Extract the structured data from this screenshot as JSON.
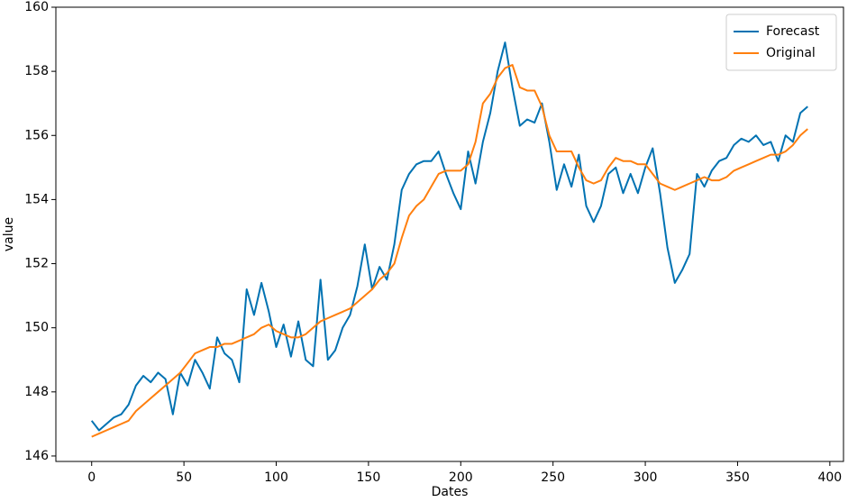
{
  "chart_data": {
    "type": "line",
    "x_label": "Dates",
    "y_label": "value",
    "x": [
      0,
      4,
      8,
      12,
      16,
      20,
      24,
      28,
      32,
      36,
      40,
      44,
      48,
      52,
      56,
      60,
      64,
      68,
      72,
      76,
      80,
      84,
      88,
      92,
      96,
      100,
      104,
      108,
      112,
      116,
      120,
      124,
      128,
      132,
      136,
      140,
      144,
      148,
      152,
      156,
      160,
      164,
      168,
      172,
      176,
      180,
      184,
      188,
      192,
      196,
      200,
      204,
      208,
      212,
      216,
      220,
      224,
      228,
      232,
      236,
      240,
      244,
      248,
      252,
      256,
      260,
      264,
      268,
      272,
      276,
      280,
      284,
      288,
      292,
      296,
      300,
      304,
      308,
      312,
      316,
      320,
      324,
      328,
      332,
      336,
      340,
      344,
      348,
      352,
      356,
      360,
      364,
      368,
      372,
      376,
      380,
      384,
      388
    ],
    "series": [
      {
        "name": "Forecast",
        "color": "#0072b2",
        "values": [
          147.1,
          146.8,
          147.0,
          147.2,
          147.3,
          147.6,
          148.2,
          148.5,
          148.3,
          148.6,
          148.4,
          147.3,
          148.6,
          148.2,
          149.0,
          148.6,
          148.1,
          149.7,
          149.2,
          149.0,
          148.3,
          151.2,
          150.4,
          151.4,
          150.5,
          149.4,
          150.1,
          149.1,
          150.2,
          149.0,
          148.8,
          151.5,
          149.0,
          149.3,
          150.0,
          150.4,
          151.3,
          152.6,
          151.2,
          151.9,
          151.5,
          152.6,
          154.3,
          154.8,
          155.1,
          155.2,
          155.2,
          155.5,
          154.8,
          154.2,
          153.7,
          155.5,
          154.5,
          155.8,
          156.7,
          158.0,
          158.9,
          157.5,
          156.3,
          156.5,
          156.4,
          157.0,
          155.8,
          154.3,
          155.1,
          154.4,
          155.4,
          153.8,
          153.3,
          153.8,
          154.8,
          155.0,
          154.2,
          154.8,
          154.2,
          155.0,
          155.6,
          154.2,
          152.5,
          151.4,
          151.8,
          152.3,
          154.8,
          154.4,
          154.9,
          155.2,
          155.3,
          155.7,
          155.9,
          155.8,
          156.0,
          155.7,
          155.8,
          155.2,
          156.0,
          155.8,
          156.7,
          156.9
        ]
      },
      {
        "name": "Original",
        "color": "#ff7f0e",
        "values": [
          146.6,
          146.7,
          146.8,
          146.9,
          147.0,
          147.1,
          147.4,
          147.6,
          147.8,
          148.0,
          148.2,
          148.4,
          148.6,
          148.9,
          149.2,
          149.3,
          149.4,
          149.4,
          149.5,
          149.5,
          149.6,
          149.7,
          149.8,
          150.0,
          150.1,
          149.9,
          149.8,
          149.7,
          149.7,
          149.8,
          150.0,
          150.2,
          150.3,
          150.4,
          150.5,
          150.6,
          150.8,
          151.0,
          151.2,
          151.5,
          151.7,
          152.0,
          152.8,
          153.5,
          153.8,
          154.0,
          154.4,
          154.8,
          154.9,
          154.9,
          154.9,
          155.1,
          155.8,
          157.0,
          157.3,
          157.8,
          158.1,
          158.2,
          157.5,
          157.4,
          157.4,
          156.9,
          156.0,
          155.5,
          155.5,
          155.5,
          155.0,
          154.6,
          154.5,
          154.6,
          155.0,
          155.3,
          155.2,
          155.2,
          155.1,
          155.1,
          154.8,
          154.5,
          154.4,
          154.3,
          154.4,
          154.5,
          154.6,
          154.7,
          154.6,
          154.6,
          154.7,
          154.9,
          155.0,
          155.1,
          155.2,
          155.3,
          155.4,
          155.4,
          155.5,
          155.7,
          156.0,
          156.2
        ]
      }
    ],
    "xlim": [
      -19.4,
      407.4
    ],
    "ylim": [
      145.83,
      160
    ],
    "xticks": [
      0,
      50,
      100,
      150,
      200,
      250,
      300,
      350,
      400
    ],
    "yticks": [
      146,
      148,
      150,
      152,
      154,
      156,
      158,
      160
    ],
    "legend": "upper right"
  }
}
